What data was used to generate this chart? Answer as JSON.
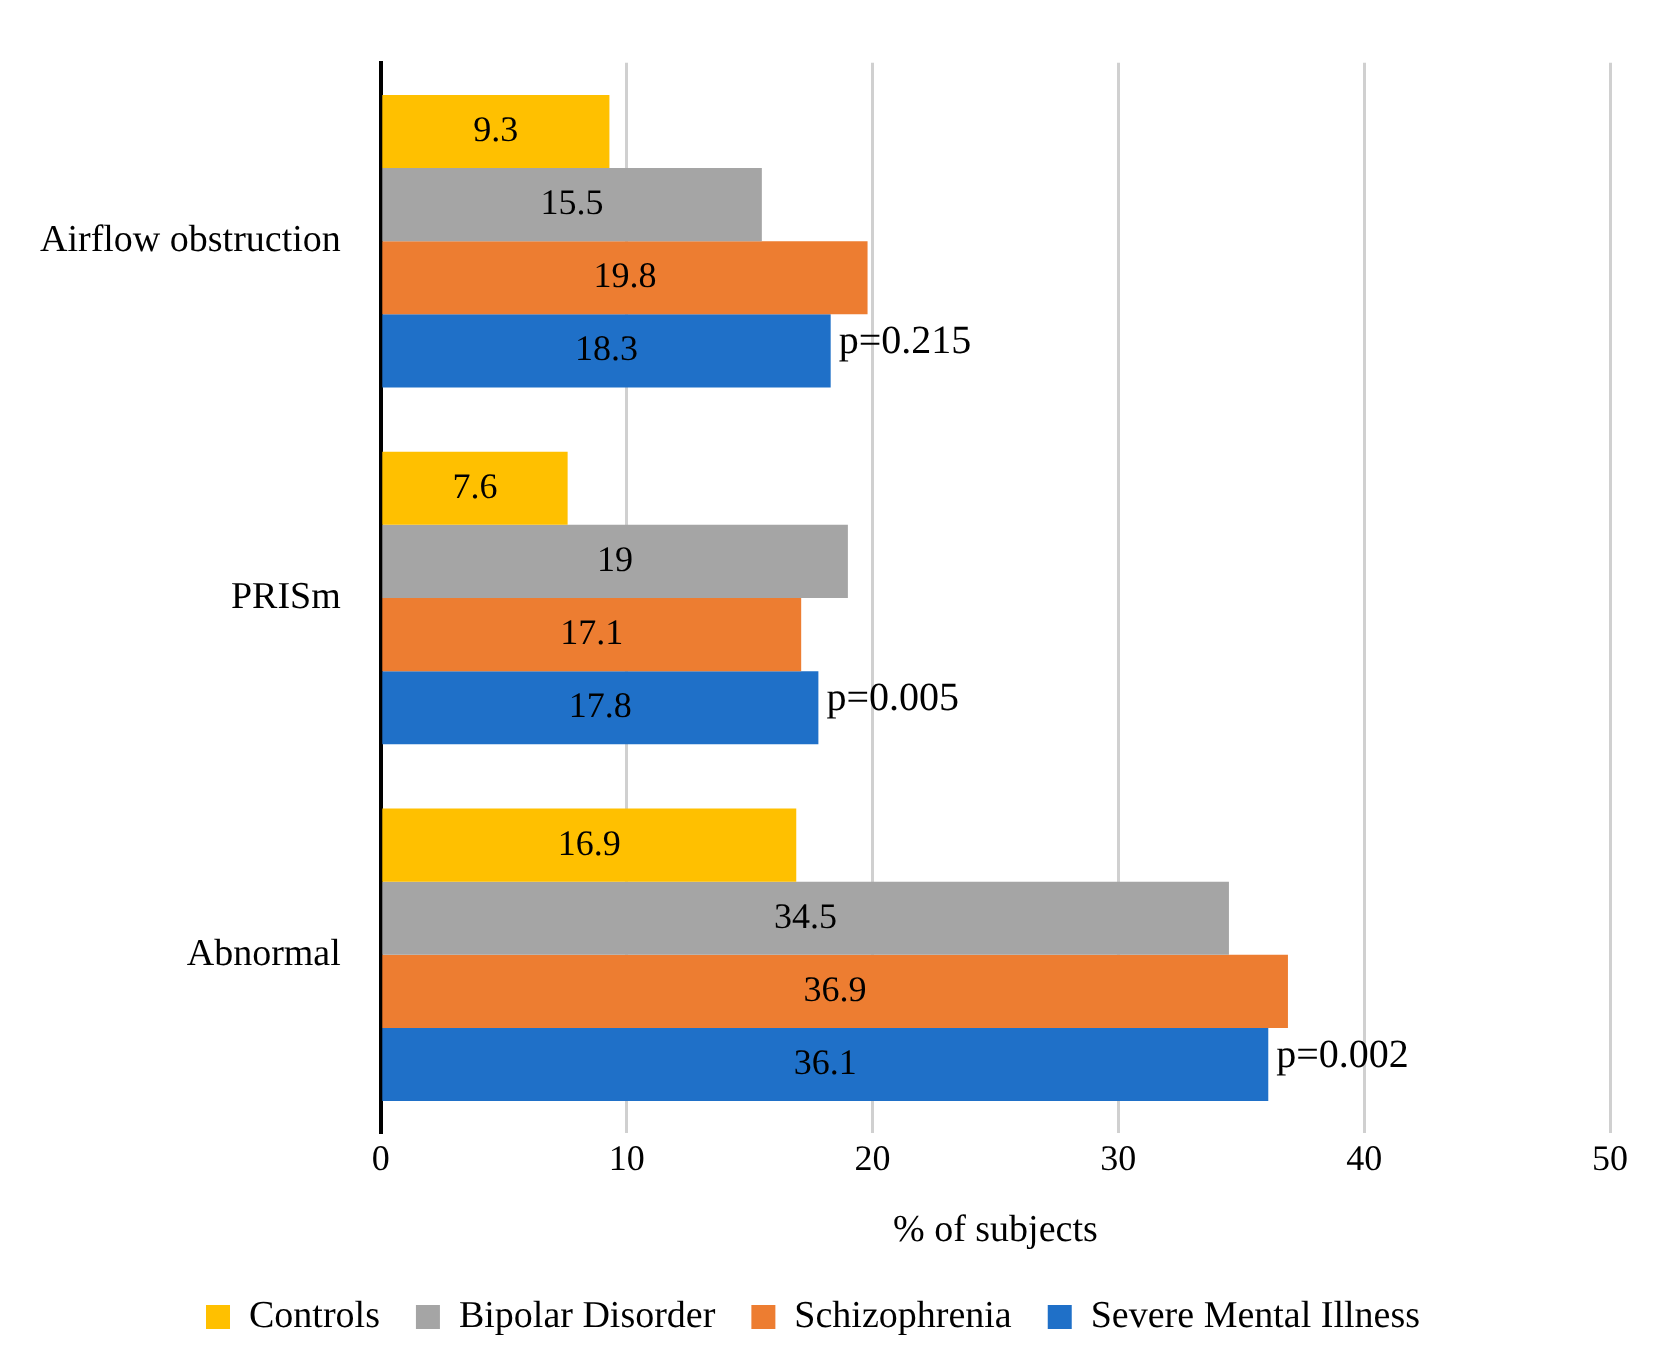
{
  "chart_data": {
    "type": "bar",
    "orientation": "horizontal",
    "xlabel": "% of subjects",
    "categories": [
      "Airflow obstruction",
      "PRISm",
      "Abnormal"
    ],
    "series": [
      {
        "name": "Controls",
        "color": "#ffc000",
        "values": [
          9.3,
          7.6,
          16.9
        ]
      },
      {
        "name": "Bipolar Disorder",
        "color": "#a5a5a5",
        "values": [
          15.5,
          19,
          34.5
        ]
      },
      {
        "name": "Schizophrenia",
        "color": "#ed7d31",
        "values": [
          19.8,
          17.1,
          36.9
        ]
      },
      {
        "name": "Severe Mental Illness",
        "color": "#1f70c8",
        "values": [
          18.3,
          17.8,
          36.1
        ]
      }
    ],
    "xlim": [
      0,
      50
    ],
    "xticks": [
      0,
      10,
      20,
      30,
      40,
      50
    ],
    "grid": "x",
    "legend": "bottom",
    "data_labels": true,
    "annotations": [
      {
        "text": "p=0.215",
        "x": 18.3,
        "y": "Airflow obstruction"
      },
      {
        "text": "p=0.005",
        "x": 17.8,
        "y": "PRISm"
      },
      {
        "text": "p=0.002",
        "x": 36.1,
        "y": "Abnormal"
      }
    ]
  }
}
